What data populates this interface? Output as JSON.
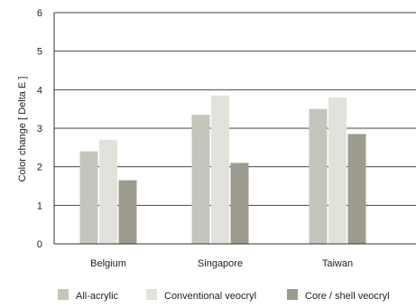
{
  "chart_data": {
    "type": "bar",
    "title": "",
    "xlabel": "",
    "ylabel": "Color change [ Delta E ]",
    "categories": [
      "Belgium",
      "Singapore",
      "Taiwan"
    ],
    "series": [
      {
        "name": "All-acrylic",
        "values": [
          2.4,
          3.35,
          3.5
        ],
        "color": "#c5c6bb"
      },
      {
        "name": "Conventional veocryl",
        "values": [
          2.7,
          3.85,
          3.8
        ],
        "color": "#e2e2dc"
      },
      {
        "name": "Core / shell veocryl",
        "values": [
          1.65,
          2.1,
          2.85
        ],
        "color": "#9c9b8d"
      }
    ],
    "ylim": [
      0,
      6
    ],
    "yticks": [
      0,
      1,
      2,
      3,
      4,
      5,
      6
    ],
    "grid": true,
    "legend_position": "bottom"
  }
}
